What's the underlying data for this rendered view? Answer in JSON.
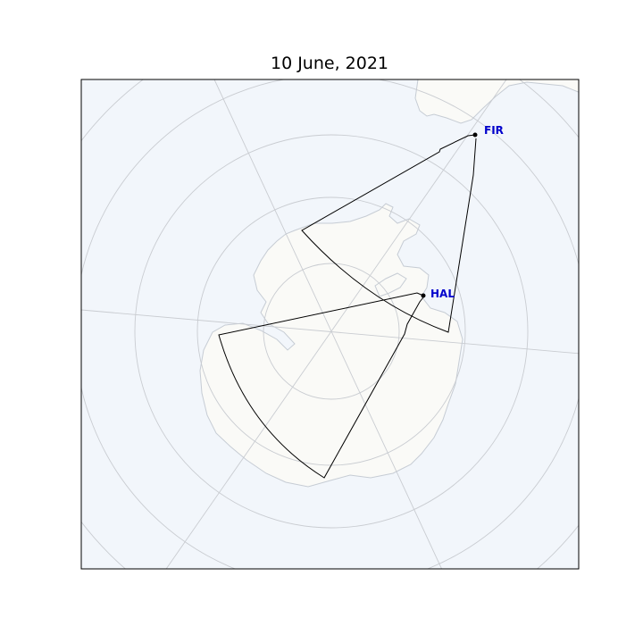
{
  "title": "10 June, 2021",
  "colors": {
    "ocean": "#f2f6fb",
    "land": "#fafaf7",
    "coastline": "#c6ccd4",
    "graticule": "#c9ccd1",
    "fov_outline": "#000000",
    "station_label": "#0000cc"
  },
  "stations": [
    {
      "code": "FIR",
      "label": "FIR"
    },
    {
      "code": "HAL",
      "label": "HAL"
    }
  ]
}
